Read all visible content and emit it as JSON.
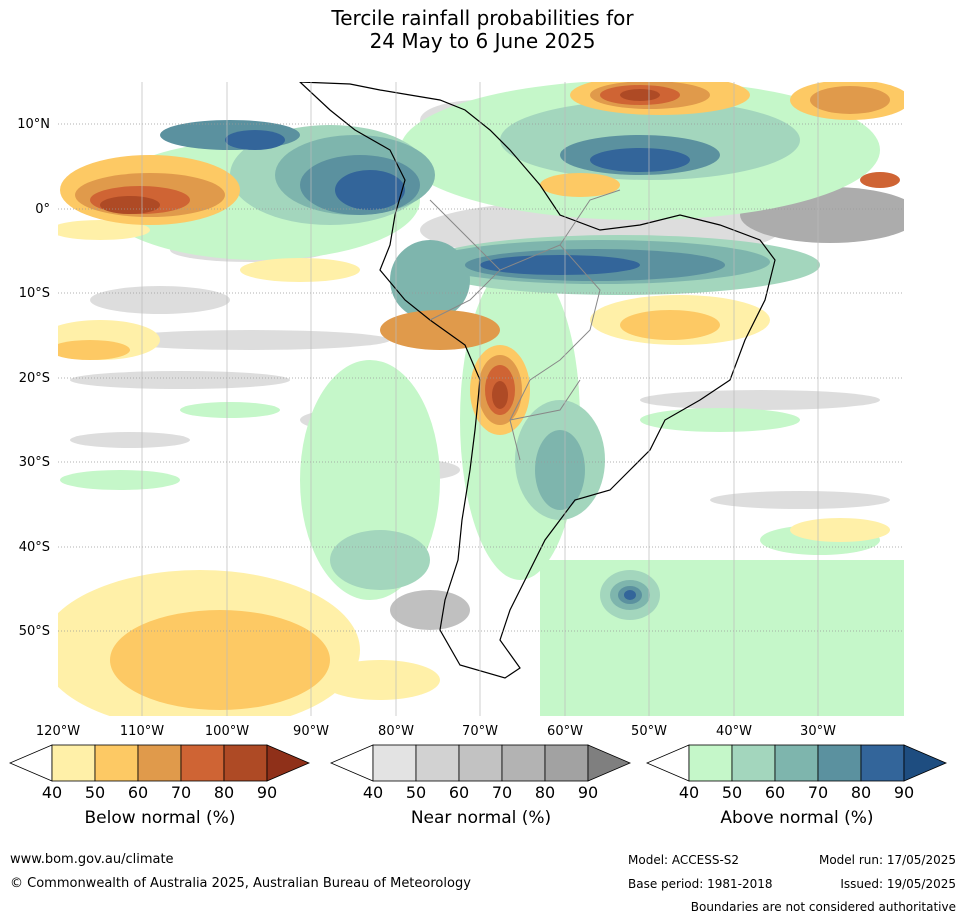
{
  "title_line1": "Tercile rainfall probabilities for",
  "title_line2": "24 May to 6 June 2025",
  "lat_labels": [
    "10°N",
    "0°",
    "10°S",
    "20°S",
    "30°S",
    "40°S",
    "50°S"
  ],
  "lon_labels": [
    "120°W",
    "110°W",
    "100°W",
    "90°W",
    "80°W",
    "70°W",
    "60°W",
    "50°W",
    "40°W",
    "30°W"
  ],
  "legends": [
    {
      "label": "Below normal (%)",
      "ticks": [
        "40",
        "50",
        "60",
        "70",
        "80",
        "90"
      ],
      "colors": [
        "#fff0a8",
        "#fdc964",
        "#e09a4b",
        "#cf6434",
        "#ae4a25",
        "#8f3019"
      ]
    },
    {
      "label": "Near normal (%)",
      "ticks": [
        "40",
        "50",
        "60",
        "70",
        "80",
        "90"
      ],
      "colors": [
        "#e3e3e3",
        "#d2d2d2",
        "#c2c2c2",
        "#b3b3b3",
        "#a2a2a2",
        "#7f7f7f"
      ]
    },
    {
      "label": "Above normal (%)",
      "ticks": [
        "40",
        "50",
        "60",
        "70",
        "80",
        "90"
      ],
      "colors": [
        "#c5f7c9",
        "#a3d6bd",
        "#7eb5ad",
        "#5b919f",
        "#33659a",
        "#1e4d80"
      ]
    }
  ],
  "footer": {
    "website": "www.bom.gov.au/climate",
    "copyright": "© Commonwealth of Australia 2025, Australian Bureau of Meteorology",
    "model": "Model: ACCESS-S2",
    "model_run": "Model run: 17/05/2025",
    "base_period": "Base period: 1981-2018",
    "issued": "Issued: 19/05/2025",
    "disclaimer": "Boundaries are not considered authoritative"
  }
}
